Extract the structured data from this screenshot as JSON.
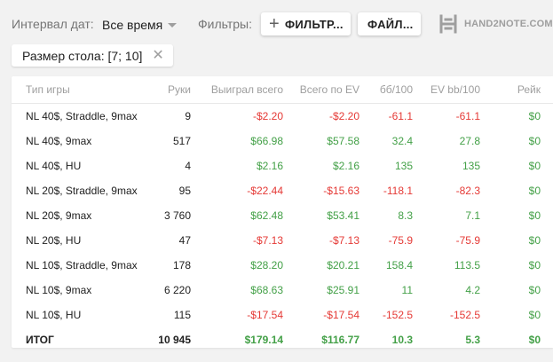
{
  "toolbar": {
    "date_label": "Интервал дат:",
    "date_value": "Все время",
    "filters_label": "Фильтры:",
    "filter_button": "ФИЛЬТР...",
    "file_button": "ФАЙЛ...",
    "logo_text": "HAND2NOTE.COM"
  },
  "chip": {
    "label": "Размер стола: [7; 10]"
  },
  "colors": {
    "positive": "#43a047",
    "negative": "#e53935",
    "logo": "#9e9e9e"
  },
  "table": {
    "headers": [
      "Тип игры",
      "Руки",
      "Выиграл всего",
      "Всего по EV",
      "бб/100",
      "EV bb/100",
      "Рейк"
    ],
    "rows": [
      [
        "NL 40$, Straddle, 9max",
        "9",
        "-$2.20",
        "-$2.20",
        "-61.1",
        "-61.1",
        "$0"
      ],
      [
        "NL 40$, 9max",
        "517",
        "$66.98",
        "$57.58",
        "32.4",
        "27.8",
        "$0"
      ],
      [
        "NL 40$, HU",
        "4",
        "$2.16",
        "$2.16",
        "135",
        "135",
        "$0"
      ],
      [
        "NL 20$, Straddle, 9max",
        "95",
        "-$22.44",
        "-$15.63",
        "-118.1",
        "-82.3",
        "$0"
      ],
      [
        "NL 20$, 9max",
        "3 760",
        "$62.48",
        "$53.41",
        "8.3",
        "7.1",
        "$0"
      ],
      [
        "NL 20$, HU",
        "47",
        "-$7.13",
        "-$7.13",
        "-75.9",
        "-75.9",
        "$0"
      ],
      [
        "NL 10$, Straddle, 9max",
        "178",
        "$28.20",
        "$20.21",
        "158.4",
        "113.5",
        "$0"
      ],
      [
        "NL 10$, 9max",
        "6 220",
        "$68.63",
        "$25.91",
        "11",
        "4.2",
        "$0"
      ],
      [
        "NL 10$, HU",
        "115",
        "-$17.54",
        "-$17.54",
        "-152.5",
        "-152.5",
        "$0"
      ]
    ],
    "total": [
      "ИТОГ",
      "10 945",
      "$179.14",
      "$116.77",
      "10.3",
      "5.3",
      "$0"
    ]
  }
}
